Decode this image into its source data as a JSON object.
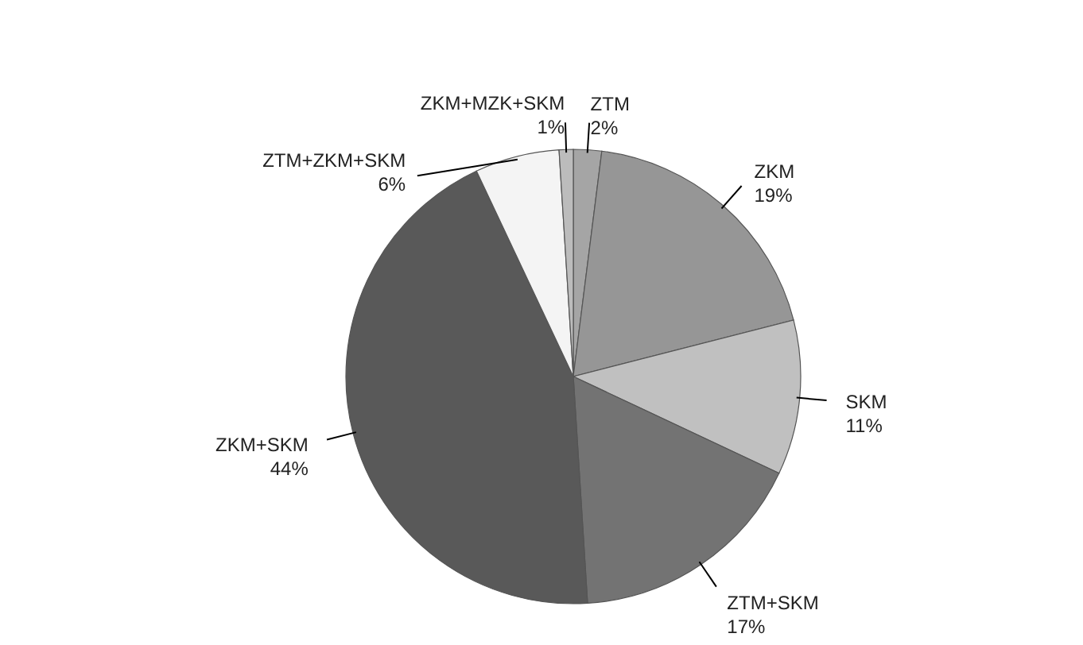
{
  "chart_data": {
    "type": "pie",
    "categories": [
      "ZTM",
      "ZKM",
      "SKM",
      "ZTM+SKM",
      "ZKM+SKM",
      "ZTM+ZKM+SKM",
      "ZKM+MZK+SKM"
    ],
    "values": [
      2,
      19,
      11,
      17,
      44,
      6,
      1
    ],
    "value_labels": [
      "2%",
      "19%",
      "11%",
      "17%",
      "44%",
      "6%",
      "1%"
    ],
    "colors": [
      "#a5a5a5",
      "#969696",
      "#c0c0c0",
      "#737373",
      "#595959",
      "#f4f4f4",
      "#bcbcbc"
    ]
  }
}
